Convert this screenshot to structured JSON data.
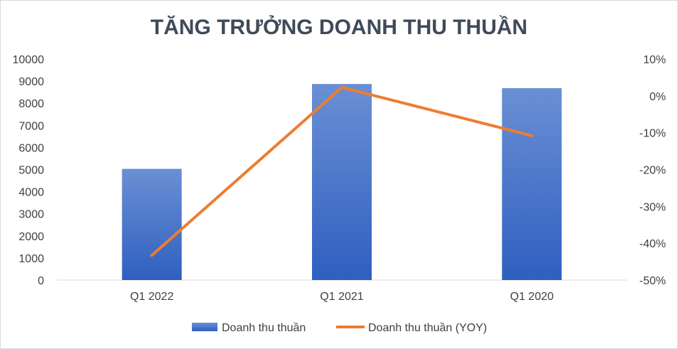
{
  "chart_data": {
    "type": "bar",
    "title": "TĂNG TRƯỞNG DOANH THU THUẦN",
    "categories": [
      "Q1 2022",
      "Q1 2021",
      "Q1 2020"
    ],
    "series": [
      {
        "name": "Doanh thu thuần",
        "type": "bar",
        "axis": "left",
        "values": [
          5030,
          8870,
          8680
        ],
        "color": "#4472c4"
      },
      {
        "name": "Doanh thu thuần (YOY)",
        "type": "line",
        "axis": "right",
        "values": [
          -43.3,
          2.3,
          -10.8
        ],
        "color": "#ed7d31"
      }
    ],
    "ylim_left": [
      0,
      10000
    ],
    "yticks_left": [
      "10000",
      "9000",
      "8000",
      "7000",
      "6000",
      "5000",
      "4000",
      "3000",
      "2000",
      "1000",
      "0"
    ],
    "ylim_right": [
      -50,
      10
    ],
    "yticks_right": [
      "10%",
      "0%",
      "-10%",
      "-20%",
      "-30%",
      "-40%",
      "-50%"
    ],
    "legend_position": "bottom",
    "grid": false
  }
}
